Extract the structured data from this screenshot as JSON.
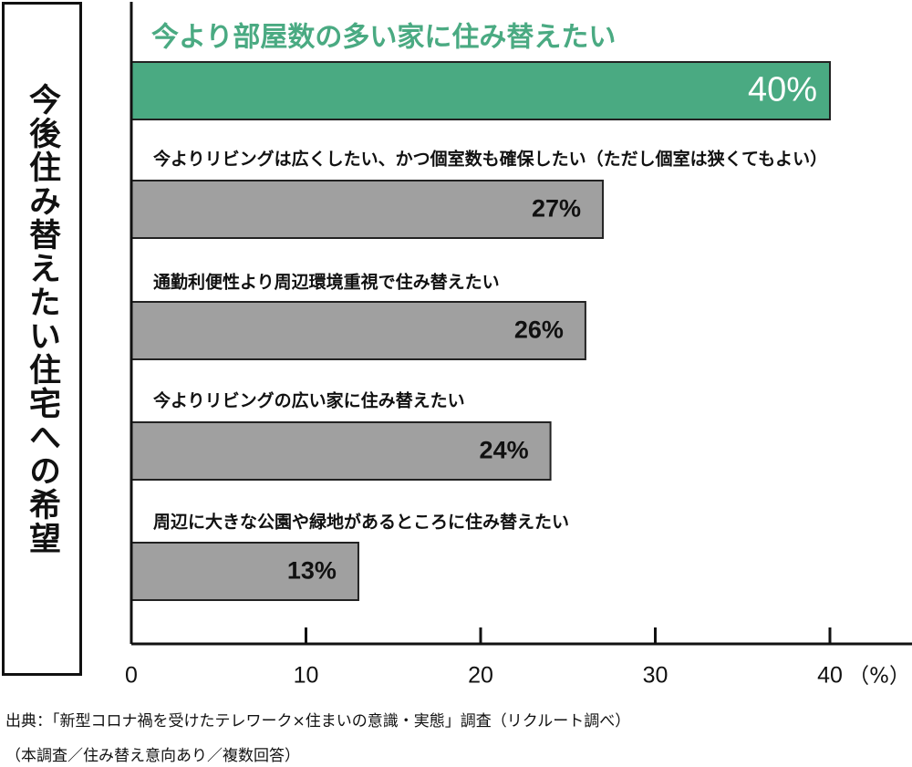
{
  "vertical_title": "今後住み替えたい住宅への希望",
  "highlight_color": "#4aaa82",
  "bar_color": "#a0a0a0",
  "source": {
    "line1": "出典：「新型コロナ禍を受けたテレワーク×住まいの意識・実態」調査（リクルート調べ）",
    "line2": "（本調査／住み替え意向あり／複数回答）"
  },
  "chart_data": {
    "type": "bar",
    "orientation": "horizontal",
    "categories": [
      "今より部屋数の多い家に住み替えたい",
      "今よりリビングは広くしたい、かつ個室数も確保したい（ただし個室は狭くてもよい）",
      "通勤利便性より周辺環境重視で住み替えたい",
      "今よりリビングの広い家に住み替えたい",
      "周辺に大きな公園や緑地があるところに住み替えたい"
    ],
    "values": [
      40,
      27,
      26,
      24,
      13
    ],
    "value_labels": [
      "40%",
      "27%",
      "26%",
      "24%",
      "13%"
    ],
    "highlighted_index": 0,
    "xlim": [
      0,
      40
    ],
    "x_ticks": [
      0,
      10,
      20,
      30,
      40
    ],
    "tick_labels": [
      "0",
      "10",
      "20",
      "30",
      "40"
    ],
    "unit_label": "（%）",
    "grid": false
  }
}
